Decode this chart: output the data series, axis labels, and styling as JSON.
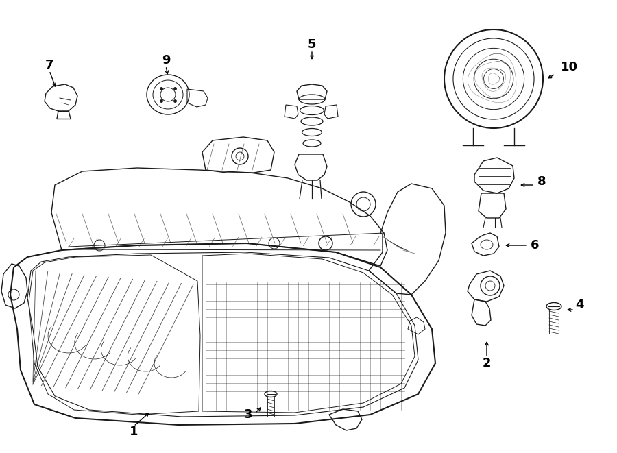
{
  "bg_color": "#ffffff",
  "line_color": "#1a1a1a",
  "lw": 1.0,
  "fig_w": 9.0,
  "fig_h": 6.61,
  "dpi": 100,
  "xlim": [
    0,
    900
  ],
  "ylim": [
    0,
    661
  ]
}
